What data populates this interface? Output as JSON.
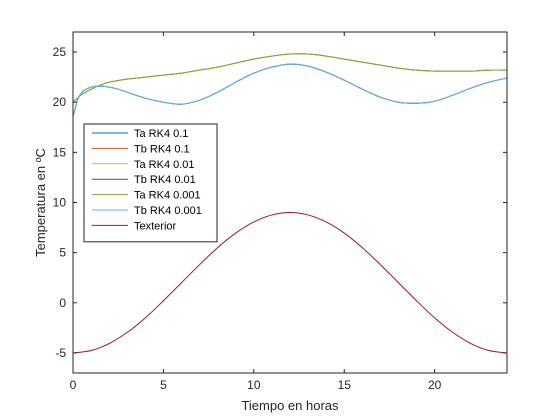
{
  "chart_data": {
    "type": "line",
    "title": "",
    "xlabel": "Tiempo en horas",
    "ylabel": "Temperatura en ºC",
    "xlim": [
      0,
      24
    ],
    "ylim": [
      -7,
      27
    ],
    "xticks": [
      0,
      5,
      10,
      15,
      20
    ],
    "yticks": [
      -5,
      0,
      5,
      10,
      15,
      20,
      25
    ],
    "grid": false,
    "legend_position": "top-left",
    "series": [
      {
        "name": "Ta RK4 0.1",
        "color": "#0072BD",
        "x": [
          0,
          0.25,
          0.5,
          1,
          1.5,
          2,
          3,
          4,
          5,
          6,
          7,
          8,
          9,
          10,
          11,
          12,
          13,
          14,
          15,
          16,
          17,
          18,
          19,
          20,
          21,
          22,
          23,
          24
        ],
        "y": [
          20.0,
          20.4,
          20.8,
          21.3,
          21.7,
          22.0,
          22.3,
          22.5,
          22.7,
          22.9,
          23.2,
          23.5,
          23.9,
          24.3,
          24.6,
          24.8,
          24.8,
          24.6,
          24.3,
          24.0,
          23.7,
          23.4,
          23.2,
          23.1,
          23.1,
          23.1,
          23.2,
          23.2
        ]
      },
      {
        "name": "Tb RK4 0.1",
        "color": "#D95319",
        "x": [
          0,
          0.1,
          0.25,
          0.5,
          1,
          1.5,
          2,
          2.5,
          3,
          4,
          5,
          6,
          7,
          8,
          9,
          10,
          11,
          12,
          13,
          14,
          15,
          16,
          17,
          18,
          19,
          20,
          21,
          22,
          23,
          24
        ],
        "y": [
          18.6,
          19.2,
          20.2,
          21.0,
          21.5,
          21.6,
          21.5,
          21.3,
          21.0,
          20.4,
          20.0,
          19.8,
          20.2,
          21.0,
          22.0,
          22.9,
          23.5,
          23.8,
          23.6,
          23.0,
          22.2,
          21.3,
          20.5,
          20.0,
          19.9,
          20.1,
          20.7,
          21.4,
          22.0,
          22.4
        ]
      },
      {
        "name": "Ta RK4 0.01",
        "color": "#EDB120",
        "x": [
          0,
          0.25,
          0.5,
          1,
          1.5,
          2,
          3,
          4,
          5,
          6,
          7,
          8,
          9,
          10,
          11,
          12,
          13,
          14,
          15,
          16,
          17,
          18,
          19,
          20,
          21,
          22,
          23,
          24
        ],
        "y": [
          20.0,
          20.4,
          20.8,
          21.3,
          21.7,
          22.0,
          22.3,
          22.5,
          22.7,
          22.9,
          23.2,
          23.5,
          23.9,
          24.3,
          24.6,
          24.8,
          24.8,
          24.6,
          24.3,
          24.0,
          23.7,
          23.4,
          23.2,
          23.1,
          23.1,
          23.1,
          23.2,
          23.2
        ]
      },
      {
        "name": "Tb RK4 0.01",
        "color": "#7E2F8E",
        "x": [
          0,
          0.1,
          0.25,
          0.5,
          1,
          1.5,
          2,
          2.5,
          3,
          4,
          5,
          6,
          7,
          8,
          9,
          10,
          11,
          12,
          13,
          14,
          15,
          16,
          17,
          18,
          19,
          20,
          21,
          22,
          23,
          24
        ],
        "y": [
          18.6,
          19.2,
          20.2,
          21.0,
          21.5,
          21.6,
          21.5,
          21.3,
          21.0,
          20.4,
          20.0,
          19.8,
          20.2,
          21.0,
          22.0,
          22.9,
          23.5,
          23.8,
          23.6,
          23.0,
          22.2,
          21.3,
          20.5,
          20.0,
          19.9,
          20.1,
          20.7,
          21.4,
          22.0,
          22.4
        ]
      },
      {
        "name": "Ta RK4 0.001",
        "color": "#77AC30",
        "x": [
          0,
          0.25,
          0.5,
          1,
          1.5,
          2,
          3,
          4,
          5,
          6,
          7,
          8,
          9,
          10,
          11,
          12,
          13,
          14,
          15,
          16,
          17,
          18,
          19,
          20,
          21,
          22,
          23,
          24
        ],
        "y": [
          20.0,
          20.4,
          20.8,
          21.3,
          21.7,
          22.0,
          22.3,
          22.5,
          22.7,
          22.9,
          23.2,
          23.5,
          23.9,
          24.3,
          24.6,
          24.8,
          24.8,
          24.6,
          24.3,
          24.0,
          23.7,
          23.4,
          23.2,
          23.1,
          23.1,
          23.1,
          23.2,
          23.2
        ]
      },
      {
        "name": "Tb RK4 0.001",
        "color": "#4DBEEE",
        "x": [
          0,
          0.1,
          0.25,
          0.5,
          1,
          1.5,
          2,
          2.5,
          3,
          4,
          5,
          6,
          7,
          8,
          9,
          10,
          11,
          12,
          13,
          14,
          15,
          16,
          17,
          18,
          19,
          20,
          21,
          22,
          23,
          24
        ],
        "y": [
          18.6,
          19.2,
          20.2,
          21.0,
          21.5,
          21.6,
          21.5,
          21.3,
          21.0,
          20.4,
          20.0,
          19.8,
          20.2,
          21.0,
          22.0,
          22.9,
          23.5,
          23.8,
          23.6,
          23.0,
          22.2,
          21.3,
          20.5,
          20.0,
          19.9,
          20.1,
          20.7,
          21.4,
          22.0,
          22.4
        ]
      },
      {
        "name": "Texterior",
        "color": "#A2142F",
        "x": [
          0,
          1,
          2,
          3,
          4,
          5,
          6,
          7,
          8,
          9,
          10,
          11,
          12,
          13,
          14,
          15,
          16,
          17,
          18,
          19,
          20,
          21,
          22,
          23,
          24
        ],
        "y": [
          -5.0,
          -4.76,
          -4.06,
          -2.95,
          -1.5,
          0.2,
          2.0,
          3.8,
          5.5,
          6.95,
          8.06,
          8.76,
          9.0,
          8.76,
          8.06,
          6.95,
          5.5,
          3.8,
          2.0,
          0.2,
          -1.5,
          -2.95,
          -4.06,
          -4.76,
          -5.0
        ]
      }
    ]
  }
}
